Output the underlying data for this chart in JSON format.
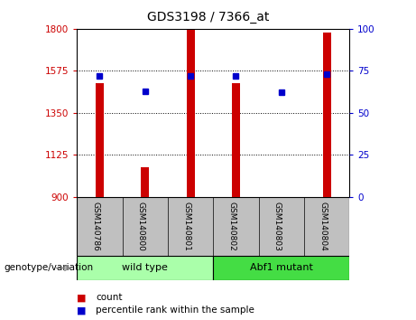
{
  "title": "GDS3198 / 7366_at",
  "samples": [
    "GSM140786",
    "GSM140800",
    "GSM140801",
    "GSM140802",
    "GSM140803",
    "GSM140804"
  ],
  "counts": [
    1510,
    1060,
    1795,
    1510,
    900,
    1780
  ],
  "percentile_ranks": [
    72,
    63,
    72,
    72,
    62,
    73
  ],
  "ylim_left": [
    900,
    1800
  ],
  "ylim_right": [
    0,
    100
  ],
  "yticks_left": [
    900,
    1125,
    1350,
    1575,
    1800
  ],
  "yticks_right": [
    0,
    25,
    50,
    75,
    100
  ],
  "bar_color": "#CC0000",
  "dot_color": "#0000CC",
  "left_tick_color": "#CC0000",
  "right_tick_color": "#0000CC",
  "label_bg_color": "#C0C0C0",
  "wildtype_color": "#AAFFAA",
  "mutant_color": "#44DD44",
  "legend_items": [
    {
      "label": "count",
      "color": "#CC0000"
    },
    {
      "label": "percentile rank within the sample",
      "color": "#0000CC"
    }
  ],
  "groups": [
    {
      "label": "wild type",
      "start": 0,
      "end": 3
    },
    {
      "label": "Abf1 mutant",
      "start": 3,
      "end": 6
    }
  ],
  "xlabel_area_label": "genotype/variation",
  "gridlines": [
    1125,
    1350,
    1575
  ]
}
